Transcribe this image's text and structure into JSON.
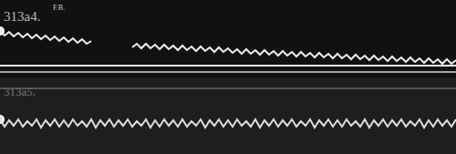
{
  "chart_data": {
    "type": "line",
    "xlim": [
      0,
      500
    ],
    "ylim": [
      0,
      169
    ],
    "tick_labels": false,
    "grid": false,
    "annotations": [
      "313a4.",
      "F.B.",
      "313a5."
    ],
    "hlines": [
      97,
      90,
      72
    ],
    "x": [
      0,
      5,
      10,
      15,
      20,
      25,
      30,
      35,
      40,
      45,
      50,
      55,
      60,
      65,
      70,
      75,
      80,
      85,
      90,
      95,
      100,
      105,
      110,
      115,
      120,
      125,
      130,
      135,
      140,
      145,
      150,
      155,
      160,
      165,
      170,
      175,
      180,
      185,
      190,
      195,
      200,
      205,
      210,
      215,
      220,
      225,
      230,
      235,
      240,
      245,
      250,
      255,
      260,
      265,
      270,
      275,
      280,
      285,
      290,
      295,
      300,
      305,
      310,
      315,
      320,
      325,
      330,
      335,
      340,
      345,
      350,
      355,
      360,
      365,
      370,
      375,
      380,
      385,
      390,
      395,
      400,
      405,
      410,
      415,
      420,
      425,
      430,
      435,
      440,
      445,
      450,
      455,
      460,
      465,
      470,
      475,
      480,
      485,
      490,
      495,
      500
    ],
    "series": [
      {
        "color": "#eeeeee",
        "values": [
          135,
          130,
          134,
          129,
          133,
          128,
          132,
          127,
          131,
          126,
          130,
          125,
          129,
          124,
          128,
          123,
          127,
          122,
          126,
          121,
          124,
          null,
          null,
          null,
          null,
          null,
          null,
          null,
          null,
          117,
          121,
          116,
          121,
          116,
          120,
          115,
          120,
          115,
          119,
          114,
          119,
          114,
          118,
          113,
          118,
          113,
          117,
          112,
          117,
          112,
          116,
          111,
          115,
          110,
          115,
          110,
          114,
          109,
          114,
          109,
          113,
          108,
          113,
          108,
          112,
          107,
          112,
          107,
          111,
          106,
          111,
          106,
          110,
          105,
          110,
          105,
          109,
          104,
          109,
          104,
          108,
          103,
          108,
          103,
          107,
          102,
          107,
          102,
          106,
          101,
          106,
          101,
          105,
          100,
          105,
          100,
          104,
          99,
          104,
          99,
          103
        ]
      },
      {
        "color": "#dddddd",
        "values": [
          38,
          30,
          37,
          31,
          38,
          30,
          36,
          31,
          38,
          29,
          37,
          31,
          38,
          30,
          37,
          30,
          38,
          31,
          36,
          30,
          38,
          29,
          37,
          31,
          38,
          30,
          37,
          31,
          38,
          30,
          36,
          31,
          38,
          29,
          37,
          30,
          38,
          31,
          37,
          30,
          38,
          30,
          36,
          31,
          38,
          29,
          37,
          31,
          38,
          30,
          37,
          30,
          38,
          31,
          36,
          30,
          38,
          29,
          37,
          31,
          38,
          30,
          37,
          31,
          38,
          30,
          36,
          31,
          38,
          29,
          37,
          31,
          38,
          30,
          37,
          30,
          38,
          31,
          36,
          30,
          38,
          29,
          37,
          31,
          38,
          30,
          37,
          31,
          38,
          30,
          36,
          31,
          38,
          29,
          37,
          30,
          38,
          31,
          37,
          30,
          38
        ]
      }
    ]
  }
}
